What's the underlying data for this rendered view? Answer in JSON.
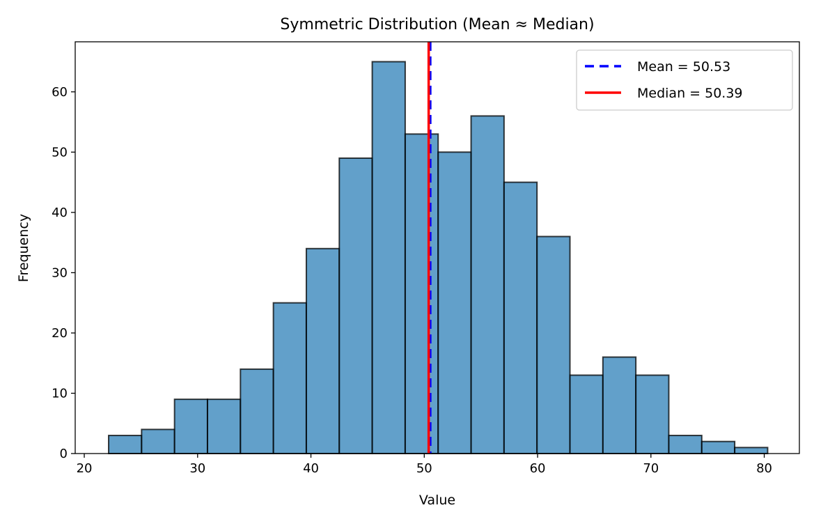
{
  "chart_data": {
    "type": "bar",
    "subtype": "histogram",
    "title": "Symmetric Distribution (Mean ≈ Median)",
    "xlabel": "Value",
    "ylabel": "Frequency",
    "xlim": [
      19.2,
      83.1
    ],
    "ylim": [
      0,
      68.3
    ],
    "xticks": [
      20,
      30,
      40,
      50,
      60,
      70,
      80
    ],
    "yticks": [
      0,
      10,
      20,
      30,
      40,
      50,
      60
    ],
    "bin_start": 22.15,
    "bin_width": 2.9075,
    "counts": [
      3,
      4,
      9,
      9,
      14,
      25,
      34,
      49,
      65,
      53,
      50,
      56,
      45,
      36,
      13,
      16,
      13,
      3,
      2,
      1
    ],
    "bar_color": "#1f77b4",
    "bar_alpha": 0.7,
    "edge_color": "#000000",
    "grid": false,
    "lines": [
      {
        "name": "mean",
        "label": "Mean = 50.53",
        "x": 50.53,
        "color": "#0000ff",
        "style": "dashed"
      },
      {
        "name": "median",
        "label": "Median = 50.39",
        "x": 50.39,
        "color": "#ff0000",
        "style": "solid"
      }
    ],
    "legend_position": "top-right"
  }
}
